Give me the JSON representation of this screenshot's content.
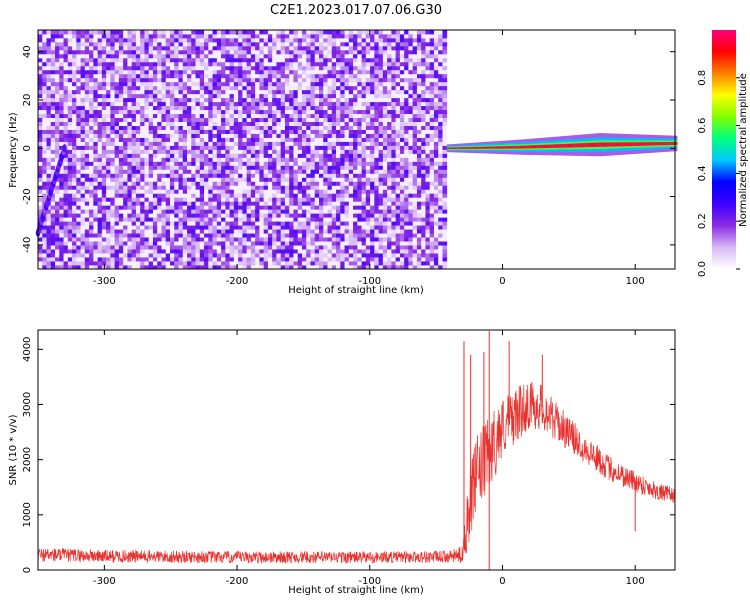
{
  "title": "C2E1.2023.017.07.06.G30",
  "colors": {
    "trace": "#e8302c",
    "cmap": [
      "#ffffff",
      "#d7b8f7",
      "#8a2be2",
      "#3c00ff",
      "#0000ff",
      "#00c8ff",
      "#00ff80",
      "#7fff00",
      "#ffff00",
      "#ff8000",
      "#ff0000",
      "#ff007f"
    ]
  },
  "chart_data": [
    {
      "type": "heatmap",
      "title": "",
      "xlabel": "Height of straight line (km)",
      "ylabel": "Frequency (Hz)",
      "xlim": [
        -350,
        130
      ],
      "ylim": [
        -50,
        49
      ],
      "xticks": [
        -300,
        -200,
        -100,
        0,
        100
      ],
      "yticks": [
        -40,
        -20,
        0,
        20,
        40
      ],
      "colorbar": {
        "label": "Normalized spectral amplitude",
        "ticks": [
          0.0,
          0.2,
          0.4,
          0.6,
          0.8
        ],
        "range": [
          0,
          1
        ]
      },
      "regions": [
        {
          "name": "noise",
          "x_range": [
            -350,
            -42
          ],
          "freq_range": [
            -50,
            49
          ],
          "amplitude_range": [
            0.05,
            0.25
          ]
        },
        {
          "name": "streak",
          "x_range": [
            -350,
            -330
          ],
          "freq_range": [
            -35,
            0
          ],
          "amplitude_range": [
            0.15,
            0.3
          ]
        },
        {
          "name": "signal",
          "x_range": [
            -42,
            130
          ],
          "center_freq": [
            0,
            0.5,
            1.5,
            2
          ],
          "width_hz": [
            2,
            4,
            6,
            4
          ],
          "peak_amplitude": 0.95
        }
      ]
    },
    {
      "type": "line",
      "title": "",
      "xlabel": "Height of straight line (km)",
      "ylabel": "SNR (10 * v/v)",
      "xlim": [
        -350,
        130
      ],
      "ylim": [
        0,
        4350
      ],
      "xticks": [
        -300,
        -200,
        -100,
        0,
        100
      ],
      "yticks": [
        0,
        1000,
        2000,
        3000,
        4000
      ],
      "envelope": {
        "x": [
          -350,
          -300,
          -200,
          -100,
          -40,
          -30,
          -28,
          -20,
          -10,
          0,
          10,
          20,
          30,
          40,
          60,
          80,
          100,
          120,
          130
        ],
        "base": [
          280,
          250,
          230,
          230,
          240,
          280,
          800,
          1700,
          2100,
          2600,
          2800,
          3000,
          2950,
          2700,
          2250,
          1850,
          1600,
          1400,
          1350
        ],
        "noise": [
          130,
          120,
          110,
          110,
          110,
          160,
          600,
          700,
          700,
          550,
          500,
          450,
          420,
          350,
          280,
          230,
          200,
          160,
          140
        ]
      },
      "spikes": [
        {
          "x": -29,
          "y": 4150
        },
        {
          "x": -24,
          "y": 3900
        },
        {
          "x": -14,
          "y": 3950
        },
        {
          "x": -10,
          "y": 4330
        },
        {
          "x": -10,
          "y": 0
        },
        {
          "x": 5,
          "y": 4150
        },
        {
          "x": 30,
          "y": 3900
        },
        {
          "x": 100,
          "y": 700
        }
      ]
    }
  ]
}
